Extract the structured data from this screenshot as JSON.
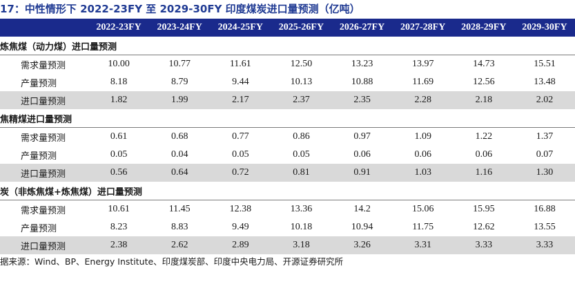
{
  "title": "17：中性情形下 2022-23FY 至 2029-30FY 印度煤炭进口量预测（亿吨）",
  "header": [
    "",
    "2022-23FY",
    "2023-24FY",
    "2024-25FY",
    "2025-26FY",
    "2026-27FY",
    "2027-28FY",
    "2028-29FY",
    "2029-30FY"
  ],
  "sections": [
    {
      "title": "炼焦煤（动力煤）进口量预测",
      "rows": [
        {
          "label": "需求量预测",
          "values": [
            "10.00",
            "10.77",
            "11.61",
            "12.50",
            "13.23",
            "13.97",
            "14.73",
            "15.51"
          ],
          "shaded": false
        },
        {
          "label": "产量预测",
          "values": [
            "8.18",
            "8.79",
            "9.44",
            "10.13",
            "10.88",
            "11.69",
            "12.56",
            "13.48"
          ],
          "shaded": false
        },
        {
          "label": "进口量预测",
          "values": [
            "1.82",
            "1.99",
            "2.17",
            "2.37",
            "2.35",
            "2.28",
            "2.18",
            "2.02"
          ],
          "shaded": true
        }
      ]
    },
    {
      "title": "焦精煤进口量预测",
      "rows": [
        {
          "label": "需求量预测",
          "values": [
            "0.61",
            "0.68",
            "0.77",
            "0.86",
            "0.97",
            "1.09",
            "1.22",
            "1.37"
          ],
          "shaded": false
        },
        {
          "label": "产量预测",
          "values": [
            "0.05",
            "0.04",
            "0.05",
            "0.05",
            "0.06",
            "0.06",
            "0.06",
            "0.07"
          ],
          "shaded": false
        },
        {
          "label": "进口量预测",
          "values": [
            "0.56",
            "0.64",
            "0.72",
            "0.81",
            "0.91",
            "1.03",
            "1.16",
            "1.30"
          ],
          "shaded": true
        }
      ]
    },
    {
      "title": "炭（非炼焦煤+炼焦煤）进口量预测",
      "rows": [
        {
          "label": "需求量预测",
          "values": [
            "10.61",
            "11.45",
            "12.38",
            "13.36",
            "14.2",
            "15.06",
            "15.95",
            "16.88"
          ],
          "shaded": false
        },
        {
          "label": "产量预测",
          "values": [
            "8.23",
            "8.83",
            "9.49",
            "10.18",
            "10.94",
            "11.75",
            "12.62",
            "13.55"
          ],
          "shaded": false
        },
        {
          "label": "进口量预测",
          "values": [
            "2.38",
            "2.62",
            "2.89",
            "3.18",
            "3.26",
            "3.31",
            "3.33",
            "3.33"
          ],
          "shaded": true
        }
      ]
    }
  ],
  "source": "据来源：Wind、BP、Energy Institute、印度煤炭部、印度中央电力局、开源证券研究所",
  "colors": {
    "header_bg": "#1a2a8c",
    "title": "#1f3a93",
    "shade": "#d9d9d9"
  }
}
